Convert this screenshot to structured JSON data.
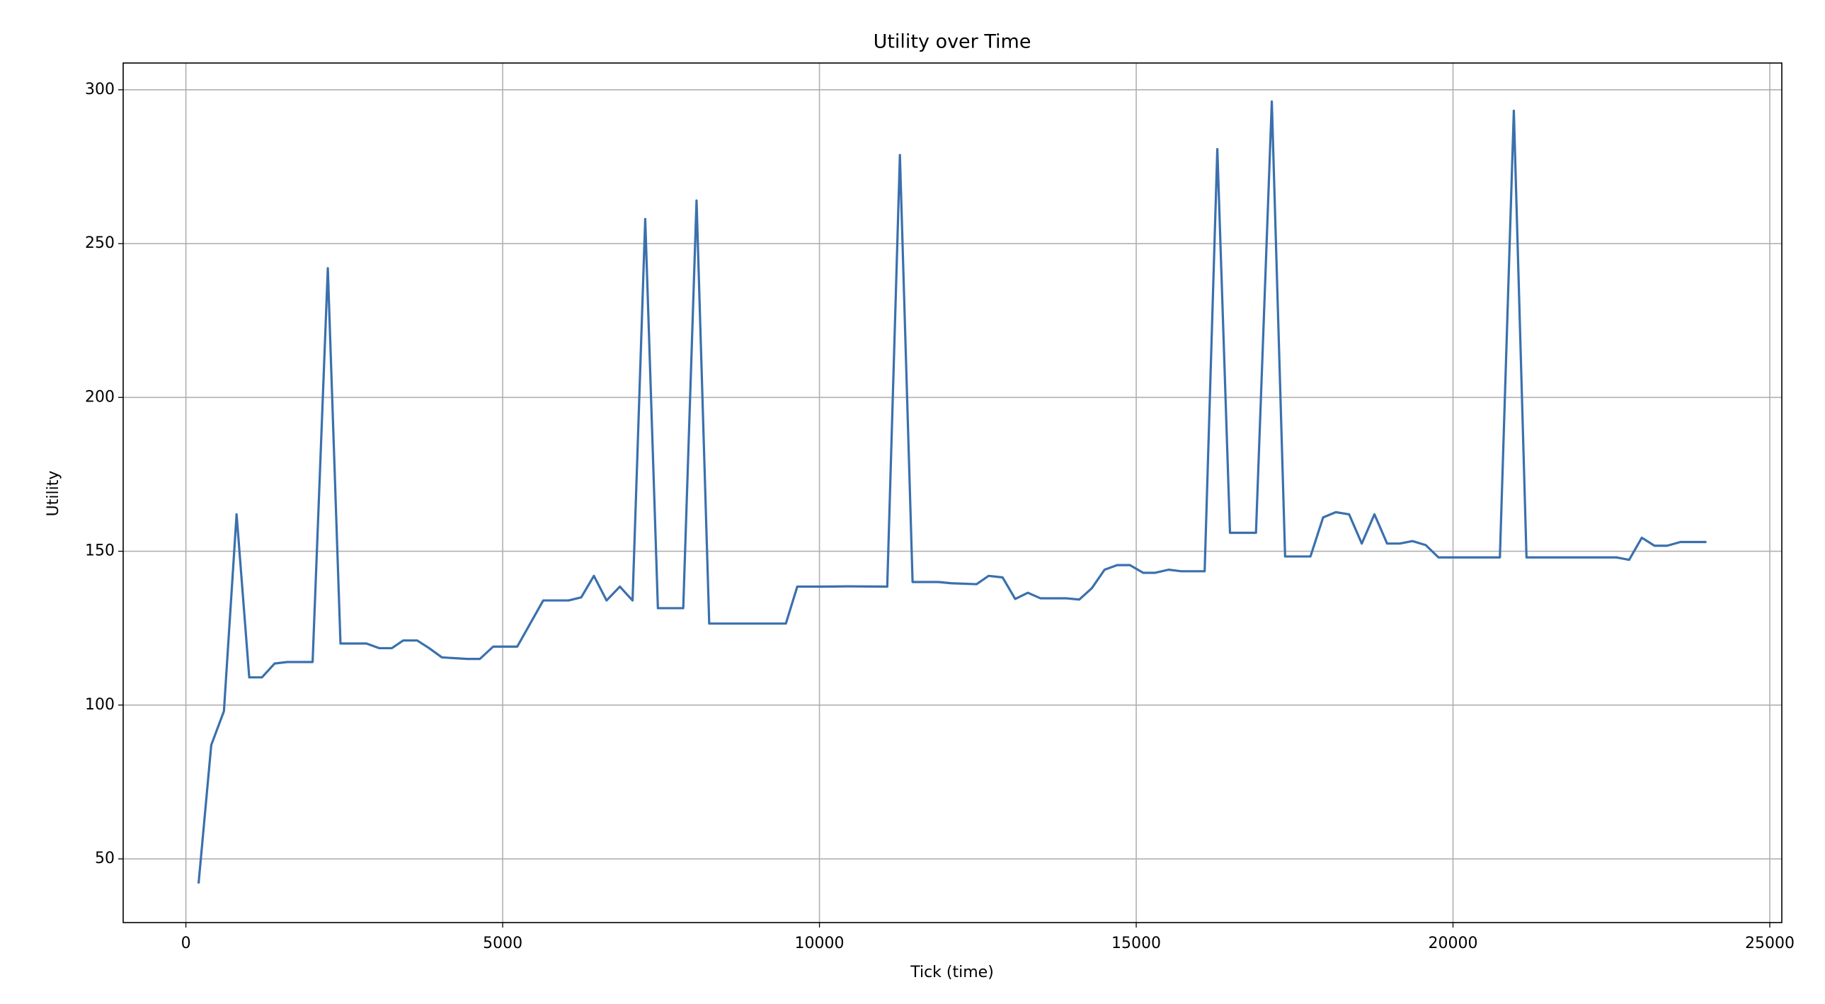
{
  "chart_data": {
    "type": "line",
    "title": "Utility over Time",
    "x_label": "Tick (time)",
    "y_label": "Utility",
    "x": [
      200,
      400,
      600,
      800,
      1000,
      1200,
      1400,
      1600,
      2000,
      2240,
      2440,
      2850,
      3050,
      3250,
      3430,
      3650,
      3840,
      4040,
      4440,
      4640,
      4850,
      5230,
      5640,
      6040,
      6240,
      6440,
      6640,
      6850,
      7050,
      7250,
      7450,
      7850,
      8060,
      8260,
      8660,
      9090,
      9470,
      9650,
      10060,
      10460,
      11070,
      11270,
      11470,
      11880,
      12080,
      12480,
      12670,
      12890,
      13090,
      13290,
      13490,
      13900,
      14100,
      14300,
      14500,
      14700,
      14900,
      15110,
      15300,
      15510,
      15710,
      16080,
      16280,
      16480,
      16890,
      17140,
      17350,
      17750,
      17950,
      18150,
      18360,
      18560,
      18760,
      18960,
      19160,
      19360,
      19570,
      19770,
      20320,
      20740,
      20960,
      21160,
      22580,
      22780,
      22980,
      23180,
      23380,
      23590,
      24000
    ],
    "series": [
      {
        "name": "Utility",
        "color": "#3a70ad",
        "values": [
          42,
          87,
          98,
          162,
          109,
          109,
          113.5,
          114,
          114,
          242,
          120,
          120,
          118.5,
          118.5,
          121,
          121,
          118.5,
          115.5,
          115,
          115,
          119,
          119,
          134,
          134,
          135,
          142,
          134,
          138.5,
          134,
          258,
          131.5,
          131.5,
          264,
          126.5,
          126.5,
          126.5,
          126.5,
          138.5,
          138.5,
          138.6,
          138.5,
          278.8,
          140,
          140,
          139.6,
          139.3,
          142,
          141.5,
          134.5,
          136.5,
          134.7,
          134.7,
          134.3,
          138,
          144,
          145.5,
          145.5,
          143,
          143,
          144,
          143.5,
          143.5,
          280.7,
          156,
          156,
          296.2,
          148.3,
          148.3,
          161,
          162.7,
          162,
          152.5,
          162,
          152.5,
          152.5,
          153.3,
          152,
          148,
          148,
          148,
          293.2,
          148,
          148,
          147.2,
          154.4,
          151.8,
          151.8,
          153,
          153
        ]
      }
    ],
    "xlim": [
      -990,
      25190
    ],
    "ylim": [
      29.3,
      308.7
    ],
    "xticks": [
      0,
      5000,
      10000,
      15000,
      20000,
      25000
    ],
    "yticks": [
      50,
      100,
      150,
      200,
      250,
      300
    ],
    "grid": true
  }
}
